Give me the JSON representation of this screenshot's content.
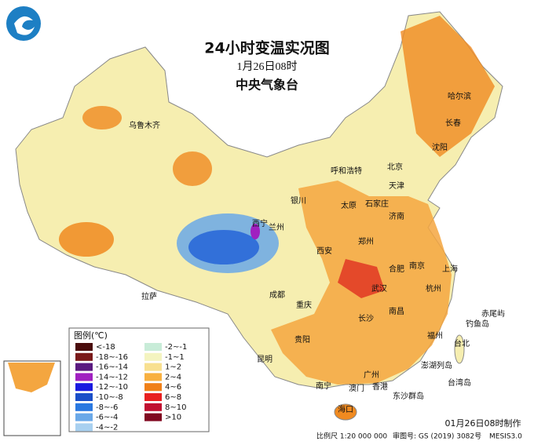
{
  "header": {
    "title": "24小时变温实况图",
    "subtitle": "1月26日08时",
    "publisher": "中央气象台"
  },
  "legend": {
    "title": "图例(℃)",
    "items": [
      {
        "label": "<-18",
        "color": "#4a0c0c"
      },
      {
        "label": "-18~-16",
        "color": "#7a1a1a"
      },
      {
        "label": "-16~-14",
        "color": "#5a1a80"
      },
      {
        "label": "-14~-12",
        "color": "#a020c0"
      },
      {
        "label": "-12~-10",
        "color": "#1a1ae0"
      },
      {
        "label": "-10~-8",
        "color": "#1a4ec8"
      },
      {
        "label": "-8~-6",
        "color": "#2a78e0"
      },
      {
        "label": "-6~-4",
        "color": "#6aa8e8"
      },
      {
        "label": "-4~-2",
        "color": "#a8d0f0"
      },
      {
        "label": "-2~-1",
        "color": "#c8ecd8"
      },
      {
        "label": "-1~1",
        "color": "#f4f4c0"
      },
      {
        "label": "1~2",
        "color": "#f8e090"
      },
      {
        "label": "2~4",
        "color": "#f8b040"
      },
      {
        "label": "4~6",
        "color": "#f08018"
      },
      {
        "label": "6~8",
        "color": "#e82020"
      },
      {
        "label": "8~10",
        "color": "#c01030"
      },
      {
        "label": ">10",
        "color": "#800820"
      }
    ]
  },
  "cities": [
    "乌鲁木齐",
    "哈尔滨",
    "长春",
    "沈阳",
    "呼和浩特",
    "北京",
    "天津",
    "银川",
    "太原",
    "石家庄",
    "济南",
    "西宁",
    "兰州",
    "郑州",
    "西安",
    "合肥",
    "南京",
    "上海",
    "武汉",
    "杭州",
    "拉萨",
    "成都",
    "重庆",
    "长沙",
    "南昌",
    "福州",
    "贵阳",
    "昆明",
    "台北",
    "南宁",
    "广州",
    "澳门",
    "香港",
    "海口",
    "台湾岛",
    "澎湖列岛",
    "东沙群岛",
    "钓鱼岛",
    "赤尾屿"
  ],
  "footer": {
    "made": "01月26日08时制作",
    "scale": "比例尺 1:20 000 000",
    "approval": "审图号: GS (2019) 3082号",
    "system": "MESIS3.0"
  }
}
